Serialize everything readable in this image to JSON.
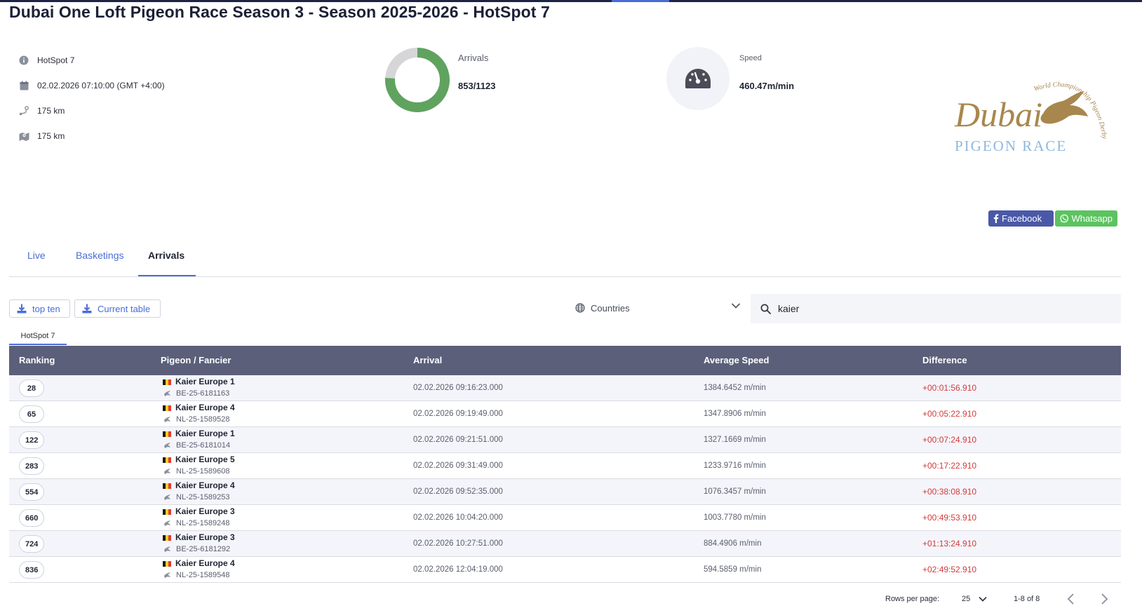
{
  "page": {
    "title": "Dubai One Loft Pigeon Race Season 3 - Season 2025-2026 - HotSpot 7"
  },
  "info": {
    "items": [
      {
        "icon": "info-icon",
        "text": "HotSpot 7"
      },
      {
        "icon": "calendar-icon",
        "text": "02.02.2026 07:10:00 (GMT +4:00)"
      },
      {
        "icon": "route-icon",
        "text": "175 km"
      },
      {
        "icon": "map-icon",
        "text": "175 km"
      }
    ]
  },
  "stats": {
    "arrivals_label": "Arrivals",
    "arrivals_value": "853/1123",
    "arrivals_arrived": 853,
    "arrivals_total": 1123,
    "speed_label": "Speed",
    "speed_value": "460.47m/min"
  },
  "logo": {
    "line1": "Dubai",
    "line2": "PIGEON RACE",
    "arc": "World Championship Pigeon Derby"
  },
  "share": {
    "facebook": "Facebook",
    "whatsapp": "Whatsapp"
  },
  "tabs": [
    {
      "label": "Live"
    },
    {
      "label": "Basketings"
    },
    {
      "label": "Arrivals"
    }
  ],
  "toolbar": {
    "top_ten": "top ten",
    "current_table": "Current table",
    "countries": "Countries",
    "search_value": "kaier"
  },
  "sub_tab": "HotSpot 7",
  "table": {
    "headers": [
      "Ranking",
      "Pigeon / Fancier",
      "Arrival",
      "Average Speed",
      "Difference"
    ],
    "rows": [
      {
        "rank": "28",
        "name": "Kaier Europe 1",
        "ring": "BE-25-6181163",
        "arrival": "02.02.2026 09:16:23.000",
        "speed": "1384.6452 m/min",
        "diff": "+00:01:56.910"
      },
      {
        "rank": "65",
        "name": "Kaier Europe 4",
        "ring": "NL-25-1589528",
        "arrival": "02.02.2026 09:19:49.000",
        "speed": "1347.8906 m/min",
        "diff": "+00:05:22.910"
      },
      {
        "rank": "122",
        "name": "Kaier Europe 1",
        "ring": "BE-25-6181014",
        "arrival": "02.02.2026 09:21:51.000",
        "speed": "1327.1669 m/min",
        "diff": "+00:07:24.910"
      },
      {
        "rank": "283",
        "name": "Kaier Europe 5",
        "ring": "NL-25-1589608",
        "arrival": "02.02.2026 09:31:49.000",
        "speed": "1233.9716 m/min",
        "diff": "+00:17:22.910"
      },
      {
        "rank": "554",
        "name": "Kaier Europe 4",
        "ring": "NL-25-1589253",
        "arrival": "02.02.2026 09:52:35.000",
        "speed": "1076.3457 m/min",
        "diff": "+00:38:08.910"
      },
      {
        "rank": "660",
        "name": "Kaier Europe 3",
        "ring": "NL-25-1589248",
        "arrival": "02.02.2026 10:04:20.000",
        "speed": "1003.7780 m/min",
        "diff": "+00:49:53.910"
      },
      {
        "rank": "724",
        "name": "Kaier Europe 3",
        "ring": "BE-25-6181292",
        "arrival": "02.02.2026 10:27:51.000",
        "speed": "884.4906 m/min",
        "diff": "+01:13:24.910"
      },
      {
        "rank": "836",
        "name": "Kaier Europe 4",
        "ring": "NL-25-1589548",
        "arrival": "02.02.2026 12:04:19.000",
        "speed": "594.5859 m/min",
        "diff": "+02:49:52.910"
      }
    ]
  },
  "pagination": {
    "rows_per_page_label": "Rows per page:",
    "rows_per_page": "25",
    "range": "1-8 of 8"
  },
  "colors": {
    "accent": "#4a6cd8",
    "header": "#5b5f7a",
    "ring_green": "#5fa35f",
    "diff_red": "#d23b3b",
    "facebook": "#4a59a7",
    "whatsapp": "#5cc360",
    "gold": "#a8874e"
  }
}
